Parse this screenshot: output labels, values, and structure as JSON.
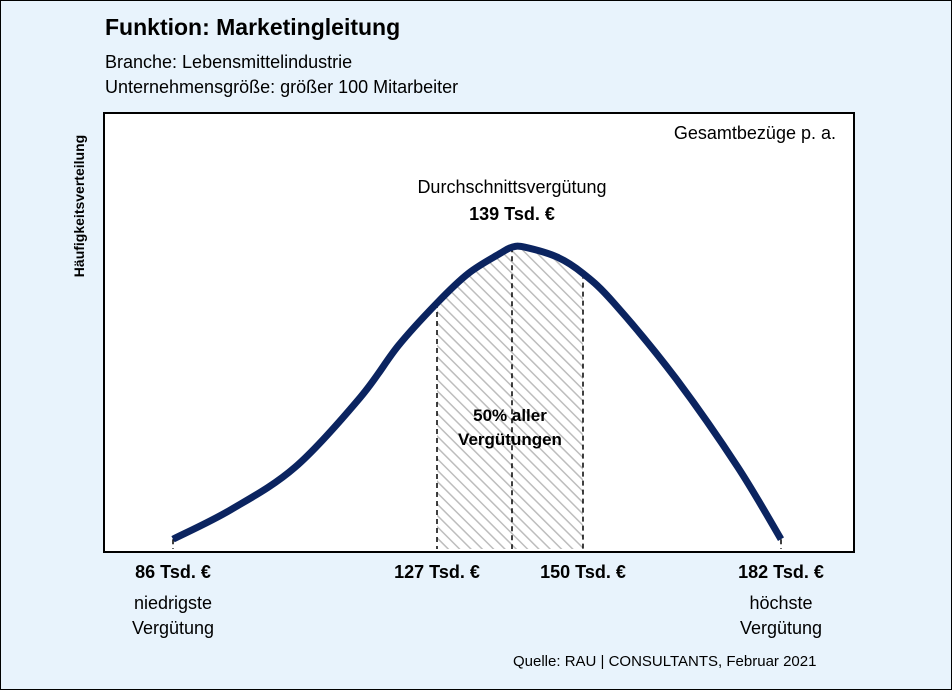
{
  "title": "Funktion: Marketingleitung",
  "subtitle_lines": [
    "Branche: Lebensmittelindustrie",
    "Unternehmensgröße: größer 100 Mitarbeiter"
  ],
  "source": "Quelle: RAU | CONSULTANTS, Februar 2021",
  "colors": {
    "background": "#e8f3fc",
    "curve": "#0b2460",
    "hatch": "#bdbdbd"
  },
  "chart_data": {
    "type": "area",
    "ylabel": "Häufigkeitsverteilung",
    "xlabel": "",
    "corner_label": "Gesamtbezüge p. a.",
    "x_unit": "Tsd. €",
    "xlim": [
      86,
      182
    ],
    "grid": false,
    "curve": {
      "x": [
        86,
        95,
        105,
        115,
        121,
        127,
        132,
        137,
        139,
        141,
        146,
        150,
        155,
        165,
        175,
        182
      ],
      "y": [
        0.03,
        0.12,
        0.25,
        0.46,
        0.62,
        0.75,
        0.84,
        0.9,
        0.92,
        0.92,
        0.89,
        0.84,
        0.75,
        0.52,
        0.25,
        0.03
      ]
    },
    "markers": [
      {
        "x": 86,
        "label": "86 Tsd. €",
        "sublabel": "niedrigste Vergütung"
      },
      {
        "x": 127,
        "label": "127 Tsd. €",
        "sublabel": ""
      },
      {
        "x": 139,
        "label": "",
        "sublabel": ""
      },
      {
        "x": 150,
        "label": "150 Tsd. €",
        "sublabel": ""
      },
      {
        "x": 182,
        "label": "182 Tsd. €",
        "sublabel": "höchste Vergütung"
      }
    ],
    "average": {
      "x": 139,
      "label": "Durchschnittsvergütung",
      "value_label": "139 Tsd. €"
    },
    "band": {
      "from": 127,
      "to": 150,
      "label_lines": [
        "50% aller",
        "Vergütungen"
      ]
    }
  }
}
